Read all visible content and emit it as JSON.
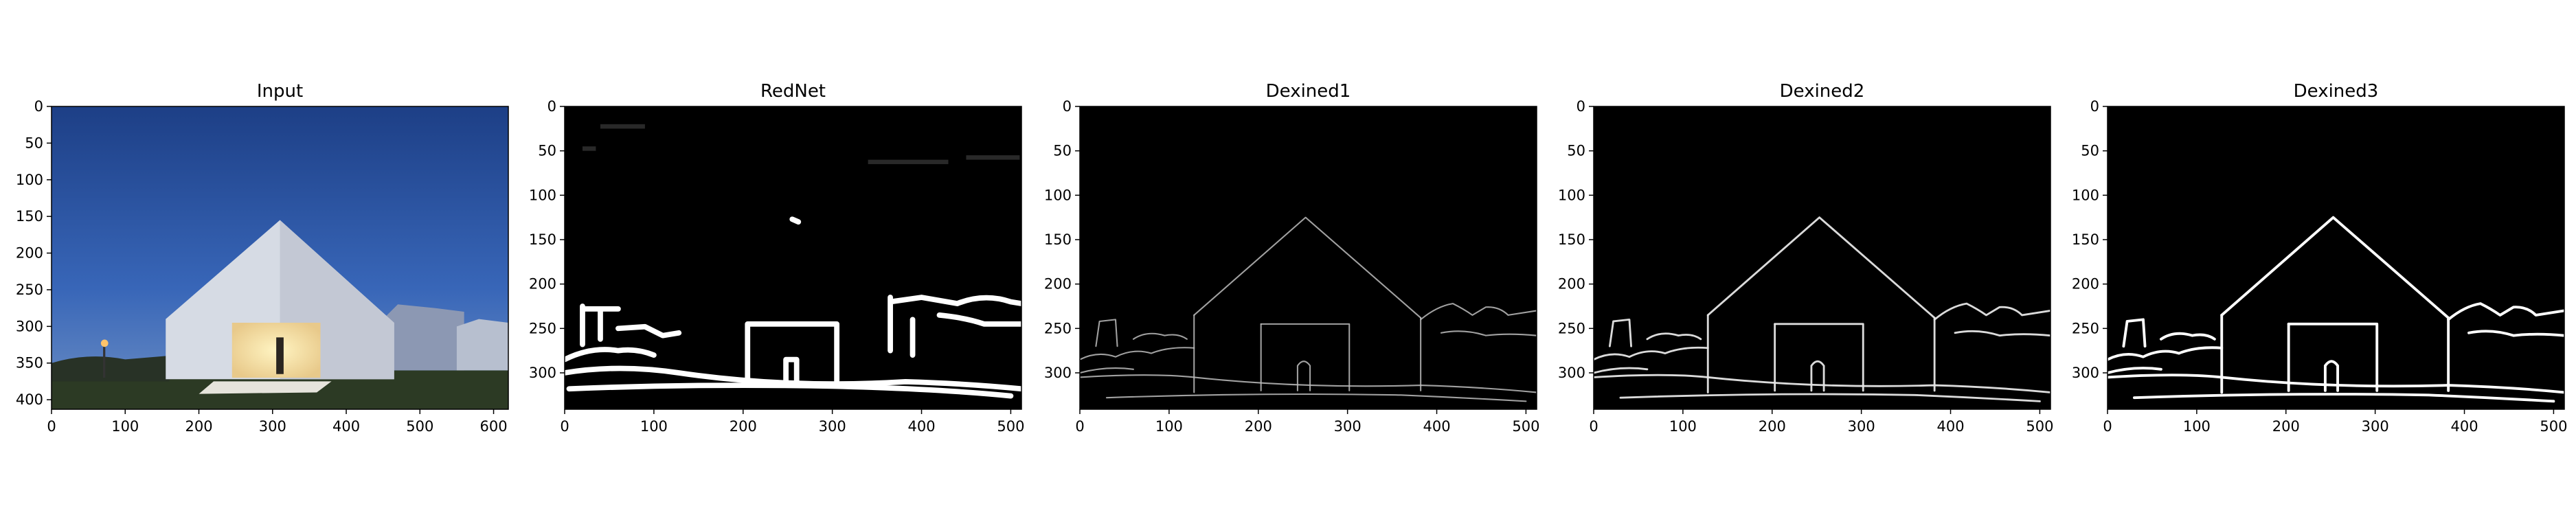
{
  "panels": [
    {
      "title": "Input",
      "kind": "photo",
      "x_ticks": [
        "0",
        "100",
        "200",
        "300",
        "400",
        "500",
        "600"
      ],
      "y_ticks": [
        "0",
        "50",
        "100",
        "150",
        "200",
        "250",
        "300",
        "350",
        "400"
      ],
      "x_range": [
        0,
        620
      ],
      "y_range": [
        0,
        413
      ]
    },
    {
      "title": "RedNet",
      "kind": "edge-thick",
      "x_ticks": [
        "0",
        "100",
        "200",
        "300",
        "400",
        "500"
      ],
      "y_ticks": [
        "0",
        "50",
        "100",
        "150",
        "200",
        "250",
        "300"
      ],
      "x_range": [
        0,
        512
      ],
      "y_range": [
        0,
        341
      ]
    },
    {
      "title": "Dexined1",
      "kind": "edge-thin",
      "x_ticks": [
        "0",
        "100",
        "200",
        "300",
        "400",
        "500"
      ],
      "y_ticks": [
        "0",
        "50",
        "100",
        "150",
        "200",
        "250",
        "300"
      ],
      "x_range": [
        0,
        512
      ],
      "y_range": [
        0,
        341
      ]
    },
    {
      "title": "Dexined2",
      "kind": "edge-mid",
      "x_ticks": [
        "0",
        "100",
        "200",
        "300",
        "400",
        "500"
      ],
      "y_ticks": [
        "0",
        "50",
        "100",
        "150",
        "200",
        "250",
        "300"
      ],
      "x_range": [
        0,
        512
      ],
      "y_range": [
        0,
        341
      ]
    },
    {
      "title": "Dexined3",
      "kind": "edge-bold",
      "x_ticks": [
        "0",
        "100",
        "200",
        "300",
        "400",
        "500"
      ],
      "y_ticks": [
        "0",
        "50",
        "100",
        "150",
        "200",
        "250",
        "300"
      ],
      "x_range": [
        0,
        512
      ],
      "y_range": [
        0,
        341
      ]
    }
  ]
}
